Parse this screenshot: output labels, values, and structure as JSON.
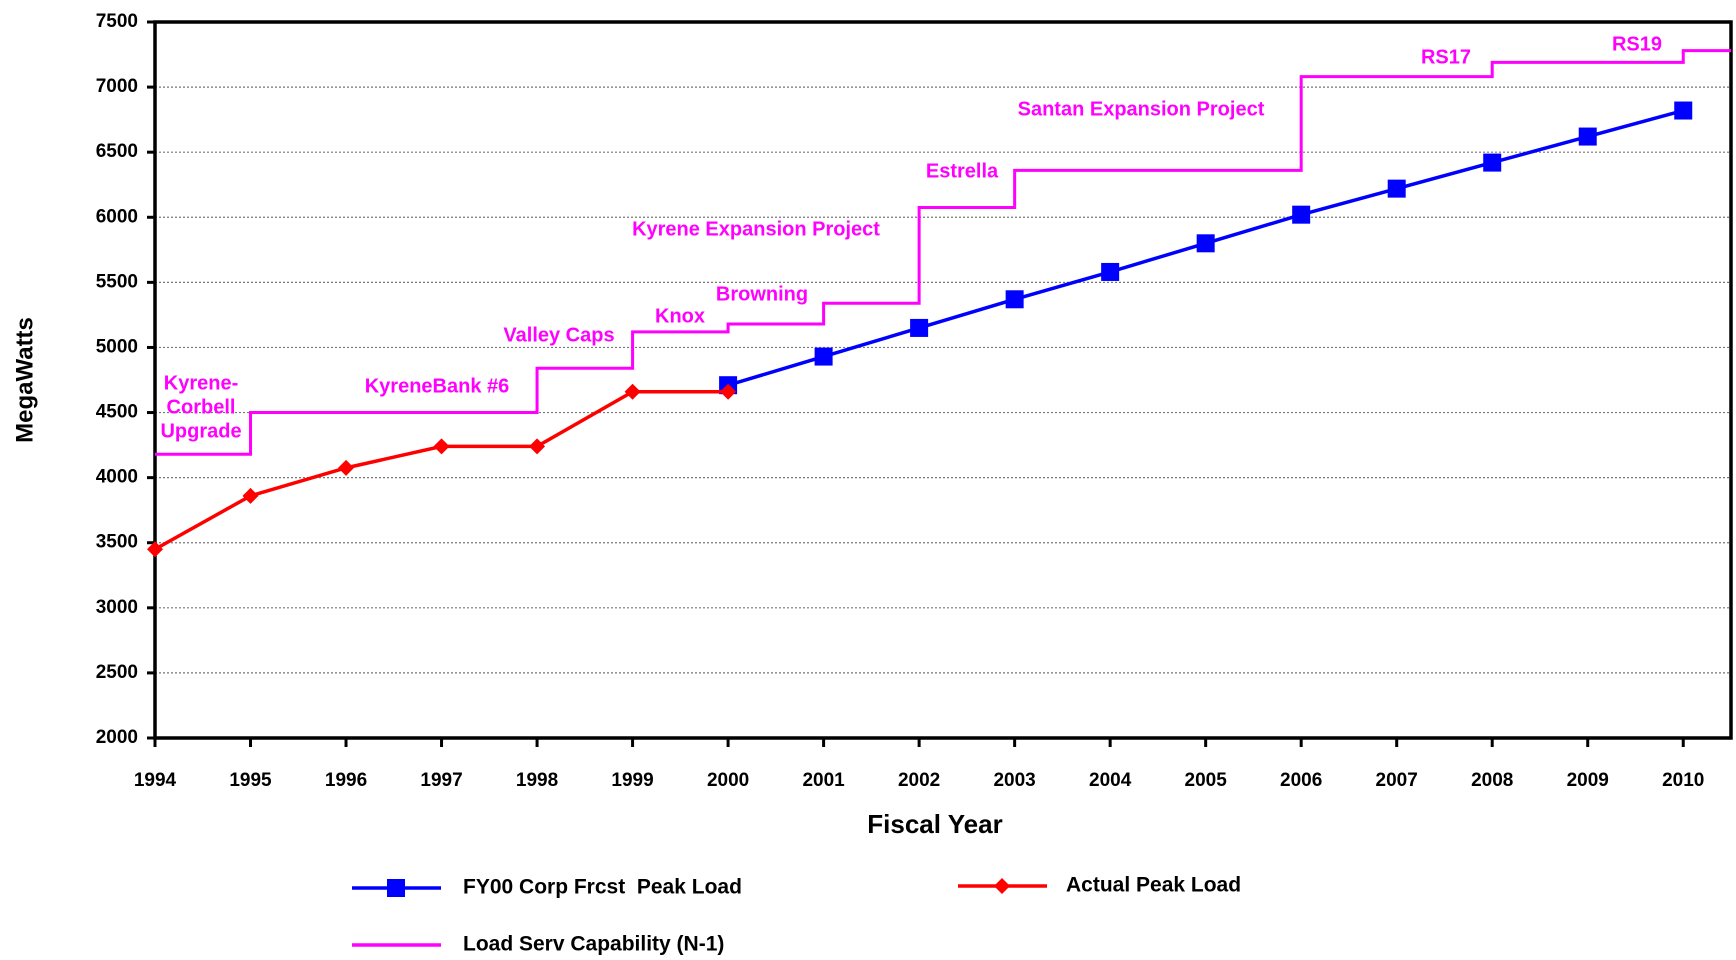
{
  "chart_data": {
    "type": "line",
    "xlabel": "Fiscal Year",
    "ylabel": "MegaWatts",
    "xlim": [
      1994,
      2010.5
    ],
    "ylim": [
      2000,
      7500
    ],
    "xticks": [
      1994,
      1995,
      1996,
      1997,
      1998,
      1999,
      2000,
      2001,
      2002,
      2003,
      2004,
      2005,
      2006,
      2007,
      2008,
      2009,
      2010
    ],
    "yticks": [
      2000,
      2500,
      3000,
      3500,
      4000,
      4500,
      5000,
      5500,
      6000,
      6500,
      7000,
      7500
    ],
    "grid": true,
    "series": [
      {
        "name": "FY00 Corp Frcst  Peak Load",
        "color": "#0000ff",
        "marker": "square",
        "x": [
          2000,
          2001,
          2002,
          2003,
          2004,
          2005,
          2006,
          2007,
          2008,
          2009,
          2010
        ],
        "values": [
          4710,
          4930,
          5150,
          5370,
          5580,
          5800,
          6020,
          6220,
          6420,
          6620,
          6820
        ]
      },
      {
        "name": "Actual Peak Load",
        "color": "#ff0000",
        "marker": "diamond",
        "x": [
          1994,
          1995,
          1996,
          1997,
          1998,
          1999,
          2000
        ],
        "values": [
          3450,
          3860,
          4075,
          4240,
          4240,
          4660,
          4660
        ]
      },
      {
        "name": "Load Serv Capability (N-1)",
        "color": "#ff00ff",
        "step": "post",
        "x": [
          1994,
          1995,
          1998,
          1999,
          2000,
          2001,
          2002,
          2003,
          2006,
          2008,
          2010,
          2010.5
        ],
        "values": [
          4180,
          4500,
          4840,
          5120,
          5180,
          5340,
          6075,
          6360,
          7080,
          7190,
          7280,
          7280
        ]
      }
    ],
    "annotations": [
      [
        "Kyrene-",
        "Corbell",
        "Upgrade"
      ],
      [
        "KyreneBank #6"
      ],
      [
        "Valley Caps"
      ],
      [
        "Knox"
      ],
      [
        "Browning"
      ],
      [
        "Kyrene Expansion Project"
      ],
      [
        "Estrella"
      ],
      [
        "Santan Expansion Project"
      ],
      [
        "RS17"
      ],
      [
        "RS19"
      ]
    ]
  }
}
